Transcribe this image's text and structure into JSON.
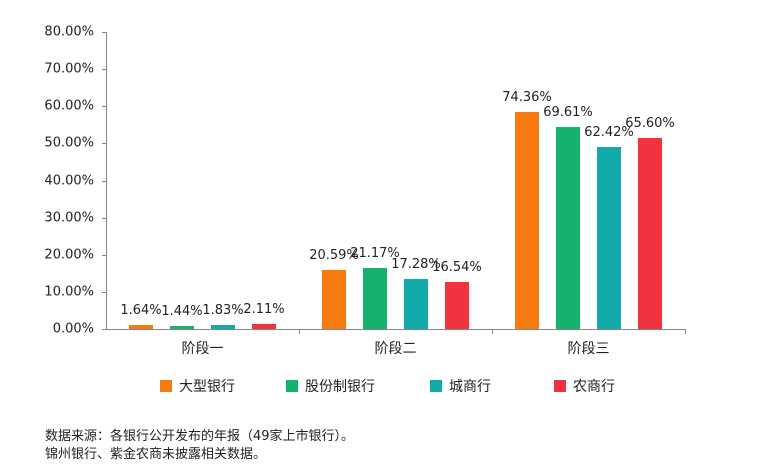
{
  "chart_data": {
    "type": "bar",
    "title": "",
    "xlabel": "",
    "ylabel": "",
    "ylim": [
      0,
      80
    ],
    "y_ticks": [
      "0.00%",
      "10.00%",
      "20.00%",
      "30.00%",
      "40.00%",
      "50.00%",
      "60.00%",
      "70.00%",
      "80.00%"
    ],
    "categories": [
      "阶段一",
      "阶段二",
      "阶段三"
    ],
    "series": [
      {
        "name": "大型银行",
        "color": "#F57A0F",
        "values": [
          1.64,
          20.59,
          74.36
        ],
        "labels": [
          "1.64%",
          "20.59%",
          "74.36%"
        ],
        "rendered_heights": [
          1.0,
          15.9,
          58.4
        ]
      },
      {
        "name": "股份制银行",
        "color": "#14B26A",
        "values": [
          1.44,
          21.17,
          69.61
        ],
        "labels": [
          "1.44%",
          "21.17%",
          "69.61%"
        ],
        "rendered_heights": [
          0.8,
          16.4,
          54.5
        ]
      },
      {
        "name": "城商行",
        "color": "#13AAAA",
        "values": [
          1.83,
          17.28,
          62.42
        ],
        "labels": [
          "1.83%",
          "17.28%",
          "62.42%"
        ],
        "rendered_heights": [
          1.1,
          13.5,
          48.9
        ]
      },
      {
        "name": "农商行",
        "color": "#F0333F",
        "values": [
          2.11,
          16.54,
          65.6
        ],
        "labels": [
          "2.11%",
          "16.54%",
          "65.60%"
        ],
        "rendered_heights": [
          1.4,
          12.7,
          51.4
        ]
      }
    ],
    "legend_position": "bottom",
    "grid": false
  },
  "notes": [
    "数据来源：各银行公开发布的年报（49家上市银行）。",
    "锦州银行、紫金农商未披露相关数据。"
  ]
}
